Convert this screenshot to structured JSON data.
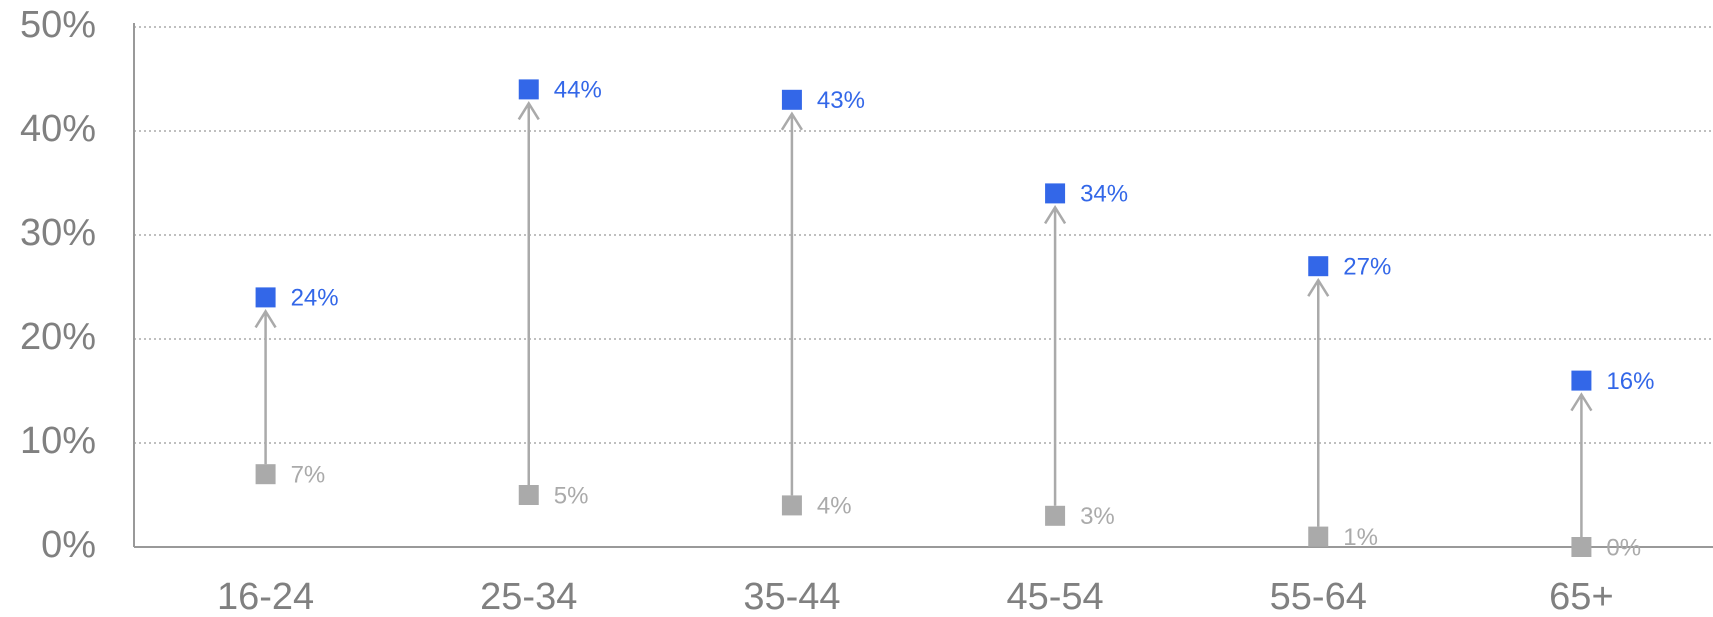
{
  "chart_data": {
    "type": "dot-arrow",
    "categories": [
      "16-24",
      "25-34",
      "35-44",
      "45-54",
      "55-64",
      "65+"
    ],
    "series": [
      {
        "color": "#aaaaaa",
        "values": [
          7,
          5,
          4,
          3,
          1,
          0
        ],
        "value_labels": [
          "7%",
          "5%",
          "4%",
          "3%",
          "1%",
          "0%"
        ]
      },
      {
        "color": "#3367e8",
        "values": [
          24,
          44,
          43,
          34,
          27,
          16
        ],
        "value_labels": [
          "24%",
          "44%",
          "43%",
          "34%",
          "27%",
          "16%"
        ]
      }
    ],
    "ylim": [
      0,
      50
    ],
    "yticks": [
      {
        "value": 0,
        "label": "0%"
      },
      {
        "value": 10,
        "label": "10%"
      },
      {
        "value": 20,
        "label": "20%"
      },
      {
        "value": 30,
        "label": "30%"
      },
      {
        "value": 40,
        "label": "40%"
      },
      {
        "value": 50,
        "label": "50%"
      }
    ],
    "grid": true,
    "arrow_color": "#aaaaaa"
  }
}
